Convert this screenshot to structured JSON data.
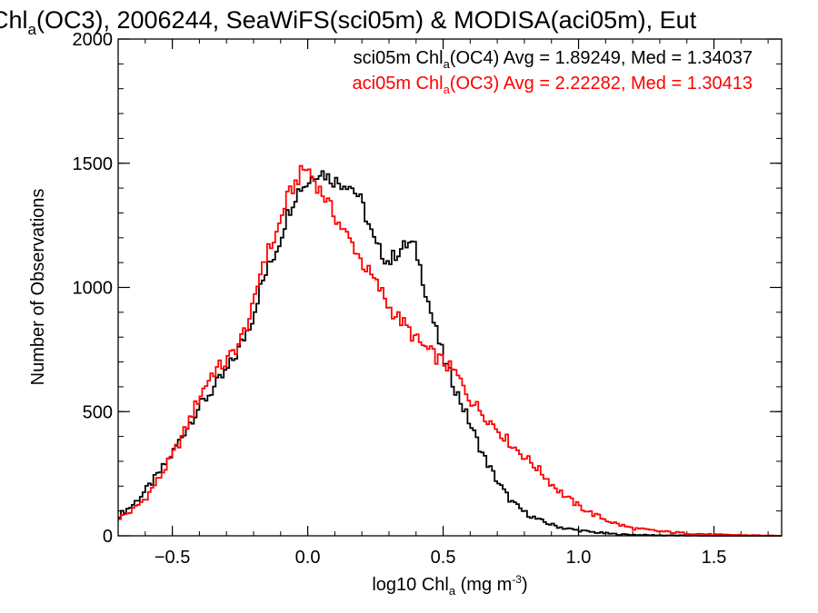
{
  "chart_data": {
    "type": "line",
    "title": {
      "pre": "Chl",
      "sub": "a",
      "post": "(OC3), 2006244, SeaWiFS(sci05m) & MODISA(aci05m), Eut"
    },
    "xlabel": {
      "pre": "log10 Chl",
      "sub": "a",
      "mid": " (mg m",
      "sup": "-3",
      "post": ")"
    },
    "ylabel": "Number of Observations",
    "xlim": [
      -0.7,
      1.75
    ],
    "ylim": [
      0,
      2000
    ],
    "xticks": [
      -0.5,
      0.0,
      0.5,
      1.0,
      1.5
    ],
    "xtick_labels": [
      "−0.5",
      "0.0",
      "0.5",
      "1.0",
      "1.5"
    ],
    "yticks": [
      0,
      500,
      1000,
      1500,
      2000
    ],
    "ytick_labels": [
      "0",
      "500",
      "1000",
      "1500",
      "2000"
    ],
    "x_minor_step": 0.1,
    "y_minor_step": 100,
    "grid": false,
    "bin_width": 0.01,
    "series": [
      {
        "color": "#000000",
        "stats": {
          "pre": "sci05m Chl",
          "sub": "a",
          "post": "(OC4) Avg = 1.89249, Med = 1.34037"
        },
        "x": [
          -0.7,
          -0.65,
          -0.6,
          -0.55,
          -0.5,
          -0.45,
          -0.4,
          -0.35,
          -0.3,
          -0.25,
          -0.2,
          -0.18,
          -0.15,
          -0.12,
          -0.1,
          -0.08,
          -0.05,
          -0.03,
          0.0,
          0.02,
          0.04,
          0.06,
          0.08,
          0.1,
          0.12,
          0.15,
          0.18,
          0.2,
          0.22,
          0.25,
          0.28,
          0.3,
          0.32,
          0.35,
          0.38,
          0.4,
          0.42,
          0.45,
          0.48,
          0.5,
          0.55,
          0.6,
          0.65,
          0.7,
          0.75,
          0.8,
          0.85,
          0.9,
          0.95,
          1.0,
          1.05,
          1.1,
          1.15,
          1.2,
          1.3,
          1.4,
          1.5,
          1.6,
          1.7,
          1.75
        ],
        "y": [
          80,
          120,
          180,
          250,
          330,
          430,
          520,
          590,
          660,
          760,
          890,
          980,
          1070,
          1140,
          1200,
          1280,
          1360,
          1400,
          1420,
          1450,
          1470,
          1460,
          1440,
          1430,
          1420,
          1420,
          1380,
          1340,
          1270,
          1170,
          1130,
          1100,
          1130,
          1160,
          1180,
          1150,
          1060,
          920,
          800,
          720,
          580,
          450,
          320,
          220,
          140,
          95,
          65,
          45,
          30,
          22,
          15,
          10,
          6,
          4,
          2,
          1,
          0,
          0,
          0,
          0
        ]
      },
      {
        "color": "#ff0000",
        "stats": {
          "pre": "aci05m Chl",
          "sub": "a",
          "post": "(OC3) Avg = 2.22282, Med = 1.30413"
        },
        "x": [
          -0.7,
          -0.65,
          -0.6,
          -0.55,
          -0.5,
          -0.45,
          -0.4,
          -0.35,
          -0.3,
          -0.25,
          -0.2,
          -0.17,
          -0.15,
          -0.12,
          -0.1,
          -0.08,
          -0.05,
          -0.02,
          0.0,
          0.02,
          0.04,
          0.06,
          0.08,
          0.1,
          0.12,
          0.15,
          0.18,
          0.2,
          0.22,
          0.25,
          0.28,
          0.3,
          0.35,
          0.4,
          0.45,
          0.5,
          0.55,
          0.6,
          0.65,
          0.7,
          0.75,
          0.8,
          0.85,
          0.9,
          0.95,
          1.0,
          1.05,
          1.1,
          1.15,
          1.2,
          1.3,
          1.4,
          1.5,
          1.6,
          1.7,
          1.75
        ],
        "y": [
          70,
          100,
          150,
          230,
          320,
          430,
          560,
          660,
          700,
          780,
          920,
          1090,
          1140,
          1200,
          1270,
          1350,
          1410,
          1470,
          1480,
          1440,
          1400,
          1370,
          1330,
          1290,
          1250,
          1200,
          1150,
          1100,
          1070,
          1020,
          970,
          920,
          860,
          790,
          740,
          700,
          650,
          550,
          490,
          430,
          370,
          320,
          270,
          210,
          160,
          120,
          90,
          65,
          45,
          30,
          18,
          10,
          5,
          3,
          1,
          0
        ]
      }
    ]
  }
}
